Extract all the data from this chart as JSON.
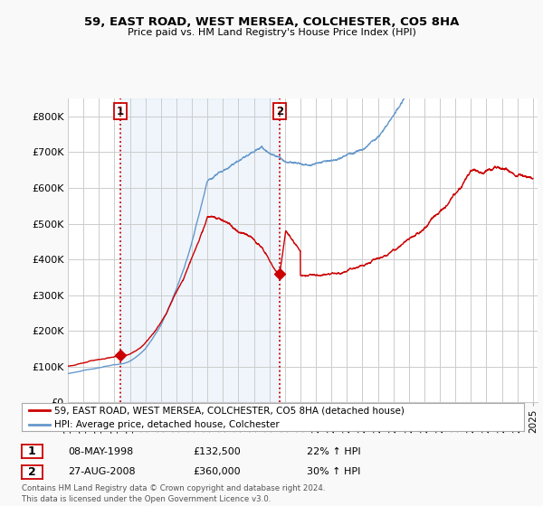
{
  "title": "59, EAST ROAD, WEST MERSEA, COLCHESTER, CO5 8HA",
  "subtitle": "Price paid vs. HM Land Registry's House Price Index (HPI)",
  "property_label": "59, EAST ROAD, WEST MERSEA, COLCHESTER, CO5 8HA (detached house)",
  "hpi_label": "HPI: Average price, detached house, Colchester",
  "property_color": "#cc0000",
  "hpi_color": "#6699cc",
  "vline_color": "#cc0000",
  "fill_color": "#ddeeff",
  "ylim": [
    0,
    850000
  ],
  "yticks": [
    0,
    100000,
    200000,
    300000,
    400000,
    500000,
    600000,
    700000,
    800000
  ],
  "ytick_labels": [
    "£0",
    "£100K",
    "£200K",
    "£300K",
    "£400K",
    "£500K",
    "£600K",
    "£700K",
    "£800K"
  ],
  "transaction1": {
    "date": "08-MAY-1998",
    "price": 132500,
    "hpi_pct": "22% ↑ HPI",
    "label": "1",
    "year": 1998.36
  },
  "transaction2": {
    "date": "27-AUG-2008",
    "price": 360000,
    "hpi_pct": "30% ↑ HPI",
    "label": "2",
    "year": 2008.65
  },
  "footer": "Contains HM Land Registry data © Crown copyright and database right 2024.\nThis data is licensed under the Open Government Licence v3.0.",
  "background_color": "#f9f9f9",
  "plot_bg_color": "#ffffff",
  "grid_color": "#cccccc"
}
